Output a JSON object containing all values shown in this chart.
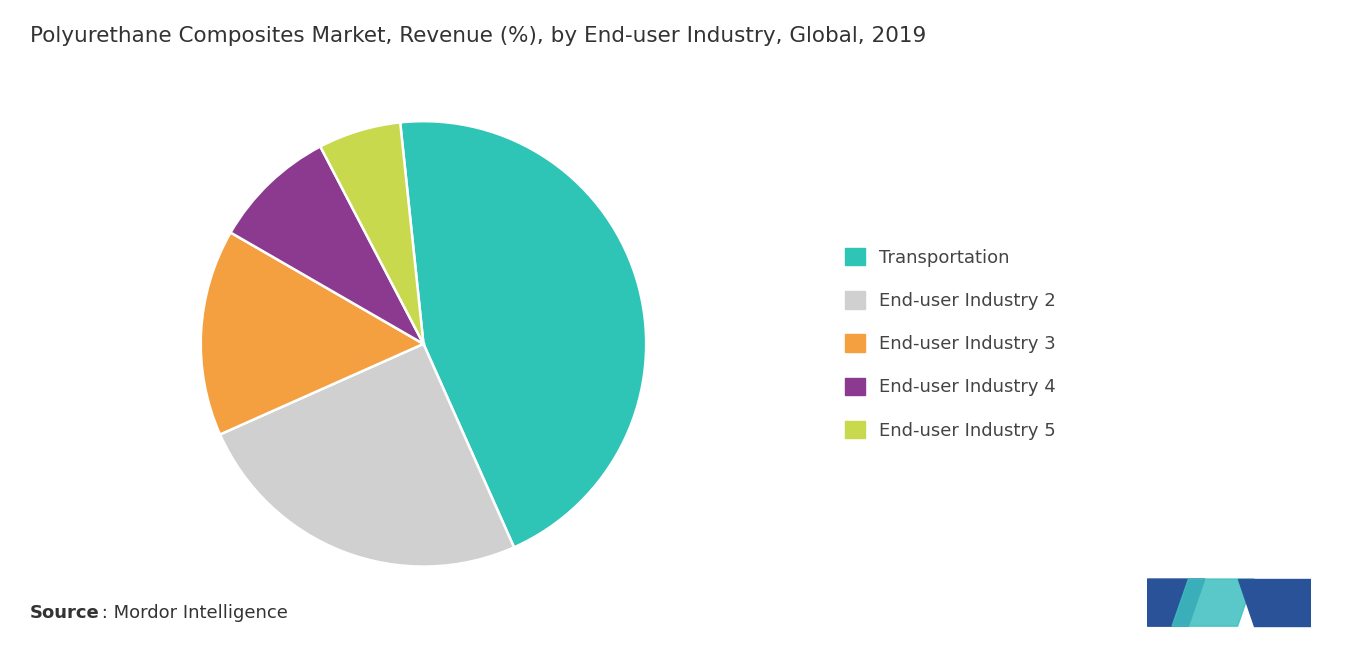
{
  "title": "Polyurethane Composites Market, Revenue (%), by End-user Industry, Global, 2019",
  "labels": [
    "Transportation",
    "End-user Industry 2",
    "End-user Industry 3",
    "End-user Industry 4",
    "End-user Industry 5"
  ],
  "values": [
    45,
    25,
    15,
    9,
    6
  ],
  "colors": [
    "#2ec4b6",
    "#d0d0d0",
    "#f4a040",
    "#8b3a8f",
    "#c8d94e"
  ],
  "legend_labels": [
    "Transportation",
    "End-user Industry 2",
    "End-user Industry 3",
    "End-user Industry 4",
    "End-user Industry 5"
  ],
  "source_bold": "Source",
  "source_text": " : Mordor Intelligence",
  "title_fontsize": 15.5,
  "legend_fontsize": 13,
  "source_fontsize": 13,
  "background_color": "#ffffff",
  "startangle": 96
}
